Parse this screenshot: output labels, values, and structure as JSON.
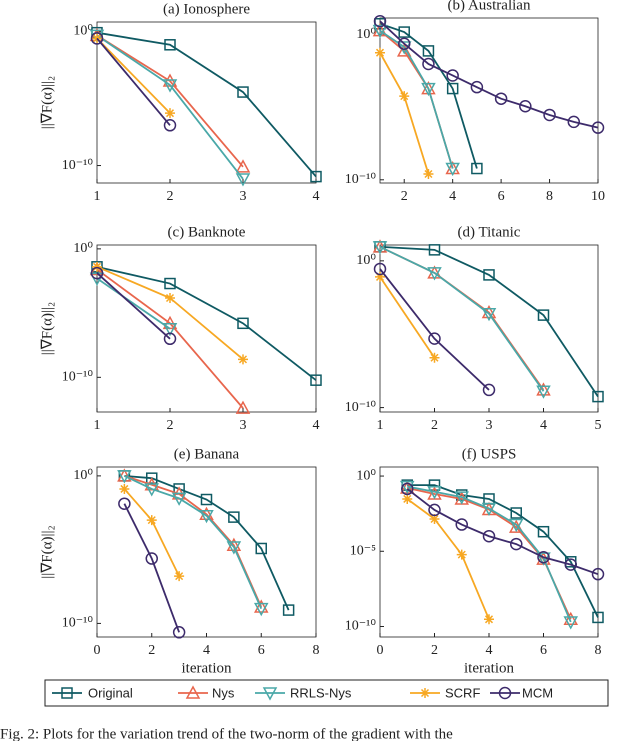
{
  "chart_data": [
    {
      "type": "line",
      "title": "(a) Ionosphere",
      "ylabel": "||∇F(α)||₂",
      "log_y": true,
      "xlim": [
        1,
        4
      ],
      "xticks": [
        1,
        2,
        3,
        4
      ],
      "ylim": [
        5e-12,
        5
      ],
      "yticks": [
        {
          "value": 1,
          "label": "10⁰"
        },
        {
          "value": 1e-10,
          "label": "10⁻¹⁰"
        }
      ],
      "series": [
        {
          "name": "Original",
          "color": "#0f5a63",
          "marker": "square",
          "x": [
            1,
            2,
            3,
            4
          ],
          "values": [
            0.8,
            0.1,
            3e-05,
            1.5e-11
          ]
        },
        {
          "name": "Nys",
          "color": "#e8664d",
          "marker": "triangle-up",
          "x": [
            1,
            2,
            3
          ],
          "values": [
            0.5,
            0.0002,
            8e-11
          ]
        },
        {
          "name": "RRLS-Nys",
          "color": "#4aa8a8",
          "marker": "triangle-down",
          "x": [
            1,
            2,
            3
          ],
          "values": [
            0.5,
            0.0001,
            1e-11
          ]
        },
        {
          "name": "SCRF",
          "color": "#f7a823",
          "marker": "asterisk",
          "x": [
            1,
            2
          ],
          "values": [
            0.3,
            8e-07
          ]
        },
        {
          "name": "MCM",
          "color": "#3d2b6b",
          "marker": "circle",
          "x": [
            1,
            2
          ],
          "values": [
            0.3,
            1e-07
          ]
        }
      ]
    },
    {
      "type": "line",
      "title": "(b) Australian",
      "log_y": true,
      "xlim": [
        1,
        10
      ],
      "xticks": [
        2,
        4,
        6,
        8,
        10
      ],
      "ylim": [
        6e-11,
        15
      ],
      "yticks": [
        {
          "value": 1,
          "label": "10⁰"
        },
        {
          "value": 1e-10,
          "label": "10⁻¹⁰"
        }
      ],
      "series": [
        {
          "name": "Original",
          "color": "#0f5a63",
          "marker": "square",
          "x": [
            1,
            2,
            3,
            4,
            5
          ],
          "values": [
            6,
            1.6,
            0.08,
            0.0002,
            6e-10
          ]
        },
        {
          "name": "Nys",
          "color": "#e8664d",
          "marker": "triangle-up",
          "x": [
            1,
            2,
            3,
            4
          ],
          "values": [
            2,
            0.08,
            0.0002,
            6e-10
          ]
        },
        {
          "name": "RRLS-Nys",
          "color": "#4aa8a8",
          "marker": "triangle-down",
          "x": [
            1,
            2,
            3,
            4
          ],
          "values": [
            2,
            0.15,
            0.0002,
            6e-10
          ]
        },
        {
          "name": "SCRF",
          "color": "#f7a823",
          "marker": "asterisk",
          "x": [
            1,
            2,
            3
          ],
          "values": [
            0.06,
            6e-05,
            2.5e-10
          ]
        },
        {
          "name": "MCM",
          "color": "#3d2b6b",
          "marker": "circle",
          "x": [
            1,
            2,
            3,
            4,
            5,
            6,
            7,
            8,
            9,
            10
          ],
          "values": [
            9,
            0.25,
            0.01,
            0.0016,
            0.00025,
            4e-05,
            1.2e-05,
            3e-06,
            1e-06,
            4e-07
          ]
        }
      ]
    },
    {
      "type": "line",
      "title": "(c) Banknote",
      "ylabel": "||∇F(α)||₂",
      "log_y": true,
      "xlim": [
        1,
        4
      ],
      "xticks": [
        1,
        2,
        3,
        4
      ],
      "ylim": [
        2e-13,
        2
      ],
      "yticks": [
        {
          "value": 1,
          "label": "10⁰"
        },
        {
          "value": 1e-10,
          "label": "10⁻¹⁰"
        }
      ],
      "series": [
        {
          "name": "Original",
          "color": "#0f5a63",
          "marker": "square",
          "x": [
            1,
            2,
            3,
            4
          ],
          "values": [
            0.04,
            0.002,
            1.6e-06,
            6e-11
          ]
        },
        {
          "name": "Nys",
          "color": "#e8664d",
          "marker": "triangle-up",
          "x": [
            1,
            2,
            3
          ],
          "values": [
            0.025,
            1.6e-06,
            4e-13
          ]
        },
        {
          "name": "RRLS-Nys",
          "color": "#4aa8a8",
          "marker": "triangle-down",
          "x": [
            1,
            2
          ],
          "values": [
            0.005,
            6e-07
          ]
        },
        {
          "name": "SCRF",
          "color": "#f7a823",
          "marker": "asterisk",
          "x": [
            1,
            2,
            3
          ],
          "values": [
            0.04,
            0.00015,
            2.5e-09
          ]
        },
        {
          "name": "MCM",
          "color": "#3d2b6b",
          "marker": "circle",
          "x": [
            1,
            2
          ],
          "values": [
            0.013,
            1e-07
          ]
        }
      ]
    },
    {
      "type": "line",
      "title": "(d) Titanic",
      "log_y": true,
      "xlim": [
        1,
        5
      ],
      "xticks": [
        1,
        2,
        3,
        4,
        5
      ],
      "ylim": [
        5e-11,
        12
      ],
      "yticks": [
        {
          "value": 1,
          "label": "10⁰"
        },
        {
          "value": 1e-10,
          "label": "10⁻¹⁰"
        }
      ],
      "series": [
        {
          "name": "Original",
          "color": "#0f5a63",
          "marker": "square",
          "x": [
            1,
            2,
            3,
            4,
            5
          ],
          "values": [
            9,
            5.6,
            0.11,
            0.0002,
            5.6e-10
          ]
        },
        {
          "name": "Nys",
          "color": "#e8664d",
          "marker": "triangle-up",
          "x": [
            1,
            2,
            3,
            4
          ],
          "values": [
            9,
            0.15,
            0.0003,
            1.6e-09
          ]
        },
        {
          "name": "RRLS-Nys",
          "color": "#4aa8a8",
          "marker": "triangle-down",
          "x": [
            1,
            2,
            3,
            4
          ],
          "values": [
            9,
            0.15,
            0.00025,
            1.3e-09
          ]
        },
        {
          "name": "SCRF",
          "color": "#f7a823",
          "marker": "asterisk",
          "x": [
            1,
            2
          ],
          "values": [
            0.08,
            2.5e-07
          ]
        },
        {
          "name": "MCM",
          "color": "#3d2b6b",
          "marker": "circle",
          "x": [
            1,
            2,
            3
          ],
          "values": [
            0.28,
            5e-06,
            1.6e-09
          ]
        }
      ]
    },
    {
      "type": "line",
      "title": "(e) Banana",
      "ylabel": "||∇F(α)||₂",
      "xlabel": "iteration",
      "log_y": true,
      "xlim": [
        0,
        8
      ],
      "xticks": [
        0,
        2,
        4,
        6,
        8
      ],
      "ylim": [
        1.2e-11,
        4
      ],
      "yticks": [
        {
          "value": 1,
          "label": "10⁰"
        },
        {
          "value": 1e-10,
          "label": "10⁻¹⁰"
        }
      ],
      "series": [
        {
          "name": "Original",
          "color": "#0f5a63",
          "marker": "square",
          "x": [
            1,
            2,
            3,
            4,
            5,
            6,
            7
          ],
          "values": [
            1,
            0.7,
            0.13,
            0.025,
            0.0016,
            1.2e-05,
            8e-10
          ]
        },
        {
          "name": "Nys",
          "color": "#e8664d",
          "marker": "triangle-up",
          "x": [
            1,
            2,
            3,
            4,
            5,
            6
          ],
          "values": [
            1,
            0.25,
            0.06,
            0.0025,
            2e-05,
            1.3e-09
          ]
        },
        {
          "name": "RRLS-Nys",
          "color": "#4aa8a8",
          "marker": "triangle-down",
          "x": [
            1,
            2,
            3,
            4,
            5,
            6
          ],
          "values": [
            1,
            0.13,
            0.03,
            0.002,
            1.5e-05,
            1e-09
          ]
        },
        {
          "name": "SCRF",
          "color": "#f7a823",
          "marker": "asterisk",
          "x": [
            1,
            2,
            3
          ],
          "values": [
            0.13,
            0.001,
            1.6e-07
          ]
        },
        {
          "name": "MCM",
          "color": "#3d2b6b",
          "marker": "circle",
          "x": [
            1,
            2,
            3
          ],
          "values": [
            0.013,
            2.5e-06,
            2.5e-11
          ]
        }
      ]
    },
    {
      "type": "line",
      "title": "(f) USPS",
      "xlabel": "iteration",
      "log_y": true,
      "xlim": [
        0,
        8
      ],
      "xticks": [
        0,
        2,
        4,
        6,
        8
      ],
      "ylim": [
        2e-11,
        4
      ],
      "yticks": [
        {
          "value": 1,
          "label": "10⁰"
        },
        {
          "value": 1e-05,
          "label": "10⁻⁵"
        },
        {
          "value": 1e-10,
          "label": "10⁻¹⁰"
        }
      ],
      "series": [
        {
          "name": "Original",
          "color": "#0f5a63",
          "marker": "square",
          "x": [
            1,
            2,
            3,
            4,
            5,
            6,
            7,
            8
          ],
          "values": [
            0.25,
            0.25,
            0.055,
            0.03,
            0.0035,
            0.0002,
            2e-06,
            4e-10
          ]
        },
        {
          "name": "Nys",
          "color": "#e8664d",
          "marker": "triangle-up",
          "x": [
            1,
            2,
            3,
            4,
            5,
            6,
            7
          ],
          "values": [
            0.16,
            0.064,
            0.03,
            0.006,
            0.0004,
            3e-06,
            3e-10
          ]
        },
        {
          "name": "RRLS-Nys",
          "color": "#4aa8a8",
          "marker": "triangle-down",
          "x": [
            1,
            2,
            3,
            4,
            5,
            6,
            7
          ],
          "values": [
            0.2,
            0.09,
            0.04,
            0.007,
            0.0006,
            3.5e-06,
            2e-10
          ]
        },
        {
          "name": "SCRF",
          "color": "#f7a823",
          "marker": "asterisk",
          "x": [
            1,
            2,
            3,
            4
          ],
          "values": [
            0.03,
            0.0014,
            6e-06,
            3e-10
          ]
        },
        {
          "name": "MCM",
          "color": "#3d2b6b",
          "marker": "circle",
          "x": [
            1,
            2,
            3,
            4,
            5,
            6,
            7,
            8
          ],
          "values": [
            0.14,
            0.0056,
            0.0006,
            0.0001,
            3e-05,
            4e-06,
            1.3e-06,
            3e-07
          ]
        }
      ]
    }
  ],
  "caption": "Fig. 2: Plots for the variation trend of the two-norm of the gradient with the"
}
